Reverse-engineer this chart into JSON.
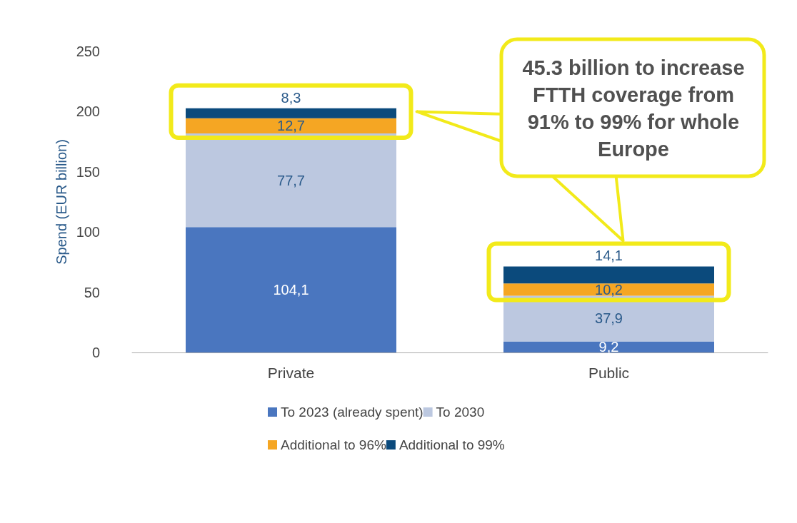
{
  "chart_data": {
    "type": "bar",
    "stacked": true,
    "ylabel": "Spend (EUR billion)",
    "categories": [
      "Private",
      "Public"
    ],
    "series": [
      {
        "name": "To 2023 (already spent)",
        "color": "#4a76bf",
        "values": [
          104.1,
          9.2
        ],
        "value_labels": [
          "104,1",
          "9,2"
        ]
      },
      {
        "name": "To 2030",
        "color": "#bcc8e0",
        "values": [
          77.7,
          37.9
        ],
        "value_labels": [
          "77,7",
          "37,9"
        ]
      },
      {
        "name": "Additional to 96%",
        "color": "#f5a623",
        "values": [
          12.7,
          10.2
        ],
        "value_labels": [
          "12,7",
          "10,2"
        ]
      },
      {
        "name": "Additional to 99%",
        "color": "#0b4a7c",
        "values": [
          8.3,
          14.1
        ],
        "value_labels": [
          "8,3",
          "14,1"
        ]
      }
    ],
    "ylim": [
      0,
      250
    ],
    "yticks": [
      0,
      50,
      100,
      150,
      200,
      250
    ],
    "grid": false,
    "legend": "bottom",
    "annotations": [
      "45.3 billion to increase FTTH coverage from 91% to 99% for whole Europe"
    ]
  }
}
